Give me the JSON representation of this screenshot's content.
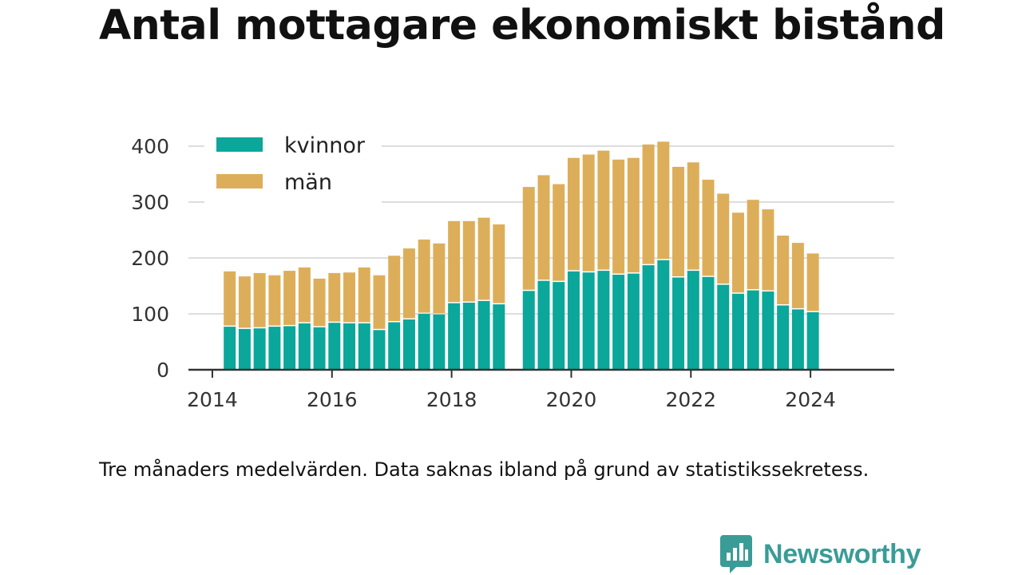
{
  "title": "Antal mottagare ekonomiskt bistånd",
  "footnote": "Tre månaders medelvärden. Data saknas ibland på grund av statistikssekretess.",
  "brand": {
    "name": "Newsworthy",
    "icon": "newsworthy-logo-icon",
    "color": "#3a9c96"
  },
  "colors": {
    "kvinnor": "#0aa79a",
    "man": "#ddae5a",
    "grid": "#dddddd",
    "axis": "#333333"
  },
  "chart_data": {
    "type": "bar",
    "stacked": true,
    "x_unit": "year",
    "xlim": [
      2013.6,
      2025.4
    ],
    "ylim": [
      0,
      430
    ],
    "x_ticks": [
      "2014",
      "2016",
      "2018",
      "2020",
      "2022",
      "2024"
    ],
    "y_ticks": [
      "0",
      "100",
      "200",
      "300",
      "400"
    ],
    "grid": true,
    "legend": "top-left",
    "x": [
      2014.29,
      2014.54,
      2014.79,
      2015.04,
      2015.29,
      2015.54,
      2015.79,
      2016.04,
      2016.29,
      2016.54,
      2016.79,
      2017.04,
      2017.29,
      2017.54,
      2017.79,
      2018.04,
      2018.29,
      2018.54,
      2018.79,
      2019.29,
      2019.54,
      2019.79,
      2020.04,
      2020.29,
      2020.54,
      2020.79,
      2021.04,
      2021.29,
      2021.54,
      2021.79,
      2022.04,
      2022.29,
      2022.54,
      2022.79,
      2023.04,
      2023.29,
      2023.54,
      2023.79,
      2024.04
    ],
    "series": [
      {
        "name": "kvinnor",
        "color": "#0aa79a",
        "values": [
          77,
          73,
          74,
          77,
          78,
          83,
          76,
          84,
          83,
          83,
          71,
          85,
          90,
          100,
          99,
          119,
          120,
          123,
          117,
          141,
          159,
          157,
          176,
          174,
          177,
          170,
          172,
          187,
          196,
          165,
          177,
          166,
          152,
          136,
          142,
          140,
          115,
          108,
          103
        ]
      },
      {
        "name": "män",
        "color": "#ddae5a",
        "values": [
          99,
          94,
          99,
          92,
          99,
          100,
          87,
          89,
          91,
          100,
          98,
          119,
          127,
          133,
          127,
          147,
          146,
          149,
          143,
          186,
          189,
          175,
          203,
          211,
          215,
          206,
          207,
          216,
          212,
          198,
          194,
          174,
          163,
          145,
          162,
          147,
          125,
          119,
          105
        ]
      }
    ]
  }
}
